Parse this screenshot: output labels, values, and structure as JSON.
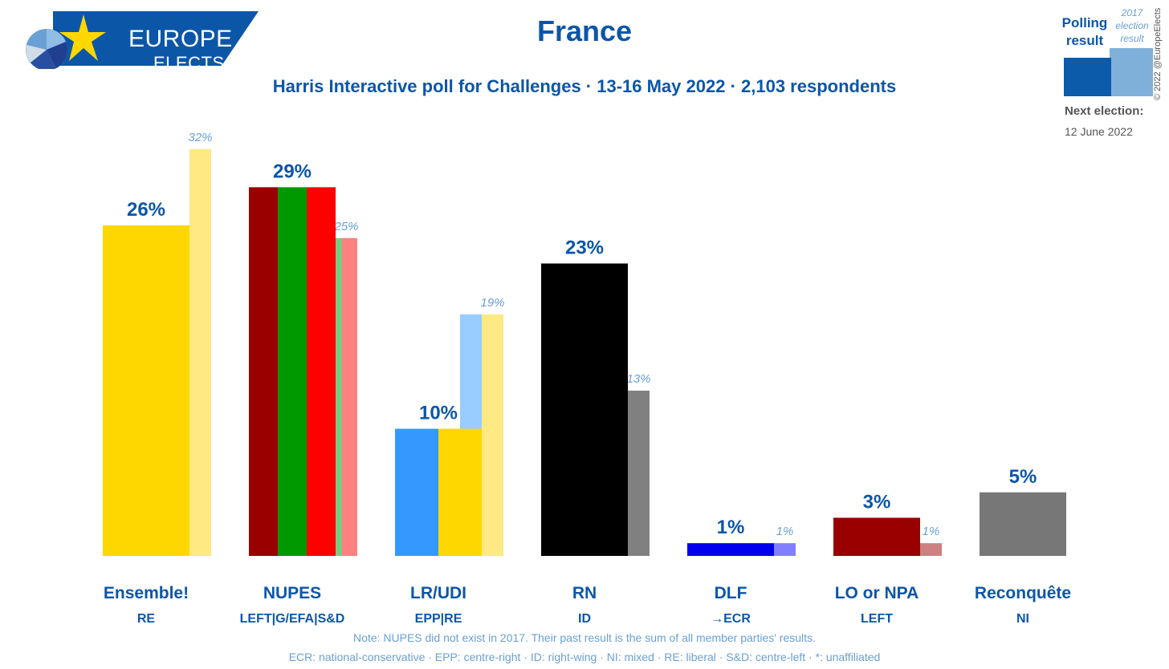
{
  "header": {
    "title": "France",
    "subtitle": "Harris Interactive poll for Challenges · 13-16 May 2022 · 2,103 respondents",
    "logo_line1": "EUROPE",
    "logo_line2": "ELECTS",
    "brand_color": "#0c56a8"
  },
  "legend": {
    "polling_label": "Polling result",
    "previous_label": "2017 election result",
    "next_election_label": "Next election:",
    "next_election_date": "12 June 2022",
    "polling_color": "#0c5aaa",
    "previous_color": "#7fb0da"
  },
  "copyright": "© 2022 @EuropeElects",
  "notes": {
    "line1": "Note: NUPES did not exist in 2017. Their past result is the sum of all member parties' results.",
    "line2": "ECR: national-conservative · EPP: centre-right · ID: right-wing · NI: mixed · RE: liberal · S&D: centre-left · *: unaffiliated"
  },
  "chart_data": {
    "type": "bar",
    "ylim": [
      0,
      33
    ],
    "categories": [
      "Ensemble!",
      "NUPES",
      "LR/UDI",
      "RN",
      "DLF",
      "LO or NPA",
      "Reconquête"
    ],
    "groups": [
      "RE",
      "LEFT|G/EFA|S&D",
      "EPP|RE",
      "ID",
      "→ECR",
      "LEFT",
      "NI"
    ],
    "series": [
      {
        "name": "Polling result",
        "values": [
          26,
          29,
          10,
          23,
          1,
          3,
          5
        ],
        "labels": [
          "26%",
          "29%",
          "10%",
          "23%",
          "1%",
          "3%",
          "5%"
        ],
        "colors": [
          [
            "#ffd700"
          ],
          [
            "#990000",
            "#009900",
            "#ff0000"
          ],
          [
            "#3399ff",
            "#ffd700"
          ],
          [
            "#000000"
          ],
          [
            "#0000ee"
          ],
          [
            "#990000"
          ],
          [
            "#777777"
          ]
        ]
      },
      {
        "name": "2017 election result",
        "values": [
          32,
          25,
          19,
          13,
          1,
          1,
          null
        ],
        "labels": [
          "32%",
          "25%",
          "19%",
          "13%",
          "1%",
          "1%",
          ""
        ],
        "colors": [
          [
            "#ffe982"
          ],
          [
            "#80c880",
            "#ff8080"
          ],
          [
            "#99ccff",
            "#ffe982"
          ],
          [
            "#808080"
          ],
          [
            "#8080ff"
          ],
          [
            "#cc8080"
          ],
          []
        ]
      }
    ]
  }
}
